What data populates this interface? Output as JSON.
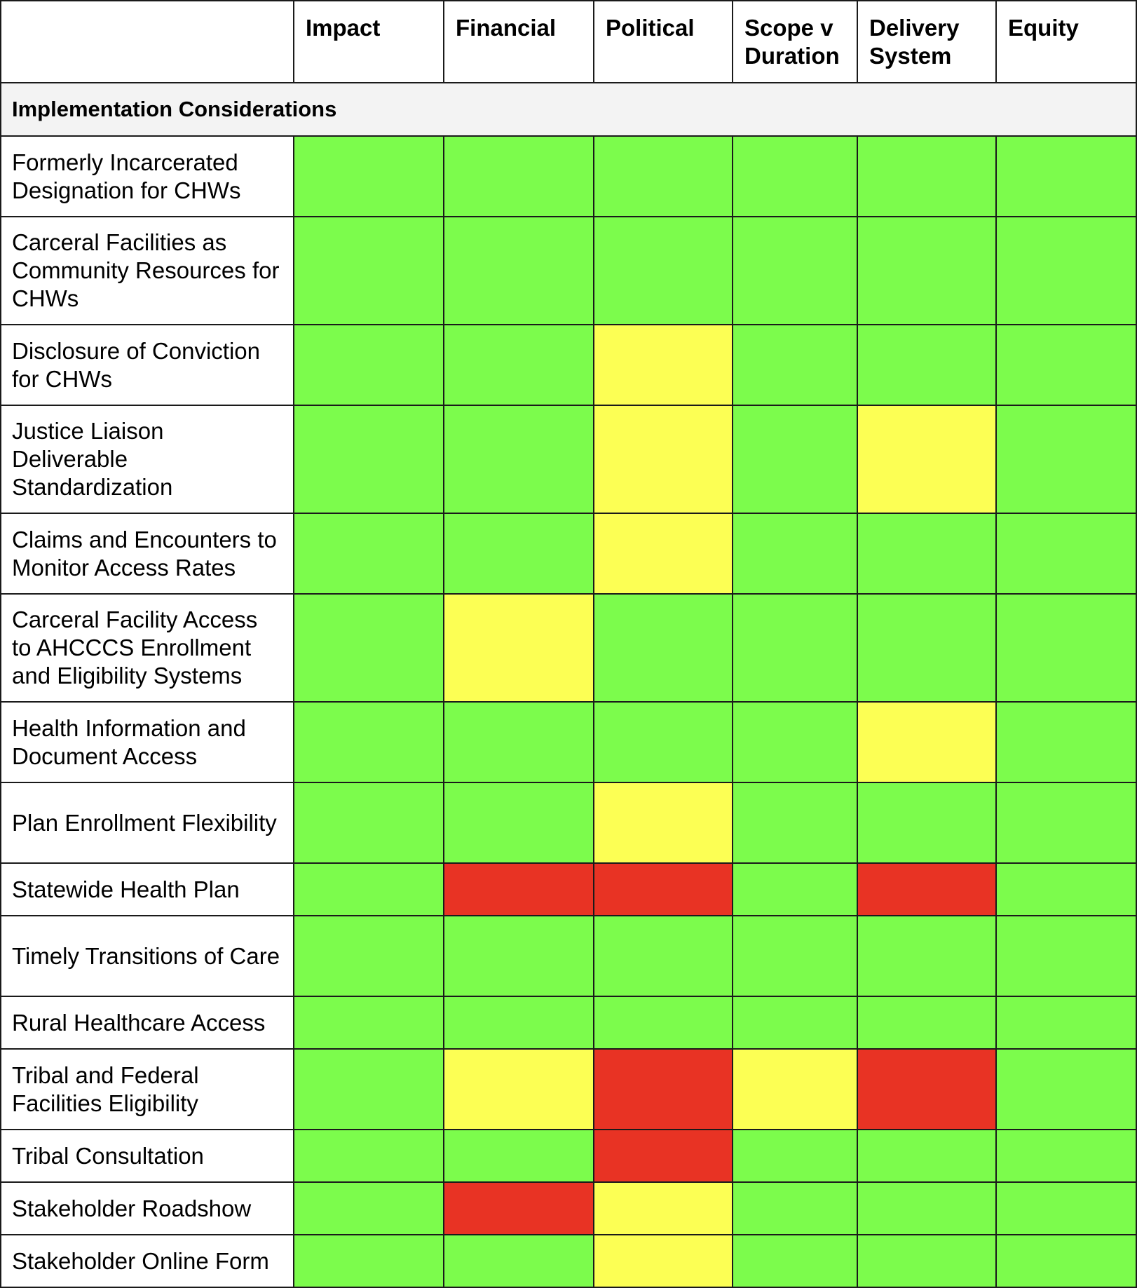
{
  "legend_colors": {
    "green": "#7cfc4c",
    "yellow": "#fcff54",
    "red": "#e83324"
  },
  "header": {
    "corner": "",
    "columns": [
      "Impact",
      "Financial",
      "Political",
      "Scope v Duration",
      "Delivery System",
      "Equity"
    ]
  },
  "section": {
    "title": "Implementation Considerations"
  },
  "rows": [
    {
      "label": "Formerly Incarcerated Designation for CHWs",
      "ratings": [
        "green",
        "green",
        "green",
        "green",
        "green",
        "green"
      ]
    },
    {
      "label": "Carceral Facilities as Community Resources for CHWs",
      "ratings": [
        "green",
        "green",
        "green",
        "green",
        "green",
        "green"
      ]
    },
    {
      "label": "Disclosure of Conviction for CHWs",
      "ratings": [
        "green",
        "green",
        "yellow",
        "green",
        "green",
        "green"
      ]
    },
    {
      "label": "Justice Liaison Deliverable Standardization",
      "ratings": [
        "green",
        "green",
        "yellow",
        "green",
        "yellow",
        "green"
      ]
    },
    {
      "label": "Claims and Encounters to Monitor Access Rates",
      "ratings": [
        "green",
        "green",
        "yellow",
        "green",
        "green",
        "green"
      ]
    },
    {
      "label": "Carceral Facility Access to AHCCCS Enrollment and Eligibility Systems",
      "ratings": [
        "green",
        "yellow",
        "green",
        "green",
        "green",
        "green"
      ]
    },
    {
      "label": "Health Information and Document Access",
      "ratings": [
        "green",
        "green",
        "green",
        "green",
        "yellow",
        "green"
      ]
    },
    {
      "label": "Plan Enrollment Flexibility",
      "ratings": [
        "green",
        "green",
        "yellow",
        "green",
        "green",
        "green"
      ]
    },
    {
      "label": "Statewide Health Plan",
      "ratings": [
        "green",
        "red",
        "red",
        "green",
        "red",
        "green"
      ]
    },
    {
      "label": "Timely Transitions of Care",
      "ratings": [
        "green",
        "green",
        "green",
        "green",
        "green",
        "green"
      ]
    },
    {
      "label": "Rural Healthcare Access",
      "ratings": [
        "green",
        "green",
        "green",
        "green",
        "green",
        "green"
      ]
    },
    {
      "label": "Tribal and Federal Facilities Eligibility",
      "ratings": [
        "green",
        "yellow",
        "red",
        "yellow",
        "red",
        "green"
      ]
    },
    {
      "label": "Tribal Consultation",
      "ratings": [
        "green",
        "green",
        "red",
        "green",
        "green",
        "green"
      ]
    },
    {
      "label": "Stakeholder Roadshow",
      "ratings": [
        "green",
        "red",
        "yellow",
        "green",
        "green",
        "green"
      ]
    },
    {
      "label": "Stakeholder Online Form",
      "ratings": [
        "green",
        "green",
        "yellow",
        "green",
        "green",
        "green"
      ]
    }
  ]
}
